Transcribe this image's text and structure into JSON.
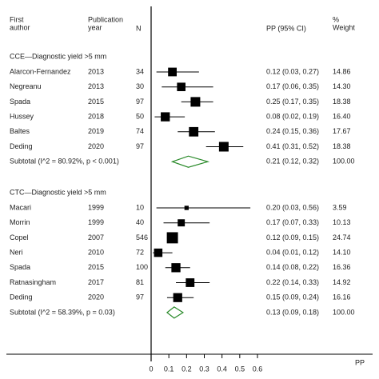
{
  "chart_data": {
    "type": "forest",
    "headers": {
      "author": [
        "First",
        "author"
      ],
      "year": [
        "Publication",
        "year"
      ],
      "n": "N",
      "ci": "PP (95% CI)",
      "weight": [
        "%",
        "Weight"
      ]
    },
    "x_label": "PP",
    "xlim": [
      0,
      0.6
    ],
    "xticks": [
      0,
      0.1,
      0.2,
      0.3,
      0.4,
      0.5,
      0.6
    ],
    "box_color": "#000000",
    "diamond_color": "#2a8a2a",
    "groups": [
      {
        "name": "CCE—Diagnostic yield >5 mm",
        "authors": [
          "Alarcon-Fernandez",
          "Negreanu",
          "Spada",
          "Hussey",
          "Baltes",
          "Deding"
        ],
        "years": [
          2013,
          2013,
          2015,
          2018,
          2019,
          2020
        ],
        "n": [
          34,
          30,
          97,
          50,
          74,
          97
        ],
        "values": [
          0.12,
          0.17,
          0.25,
          0.08,
          0.24,
          0.41
        ],
        "lower": [
          0.03,
          0.06,
          0.17,
          0.02,
          0.15,
          0.31
        ],
        "upper": [
          0.27,
          0.35,
          0.35,
          0.19,
          0.36,
          0.52
        ],
        "value_labels": [
          "0.12 (0.03, 0.27)",
          "0.17 (0.06, 0.35)",
          "0.25 (0.17, 0.35)",
          "0.08 (0.02, 0.19)",
          "0.24 (0.15, 0.36)",
          "0.41 (0.31, 0.52)"
        ],
        "weights": [
          14.86,
          14.3,
          18.38,
          16.4,
          17.67,
          18.38
        ],
        "weight_labels": [
          "14.86",
          "14.30",
          "18.38",
          "16.40",
          "17.67",
          "18.38"
        ],
        "subtotal": {
          "label": "Subtotal (I^2 = 80.92%, p < 0.001)",
          "value": 0.21,
          "lower": 0.12,
          "upper": 0.32,
          "value_label": "0.21 (0.12, 0.32)",
          "weight": 100,
          "weight_label": "100.00"
        }
      },
      {
        "name": "CTC—Diagnostic yield >5 mm",
        "authors": [
          "Macari",
          "Morrin",
          "Copel",
          "Neri",
          "Spada",
          "Ratnasingham",
          "Deding"
        ],
        "years": [
          1999,
          1999,
          2007,
          2010,
          2015,
          2017,
          2020
        ],
        "n": [
          10,
          40,
          546,
          72,
          100,
          81,
          97
        ],
        "values": [
          0.2,
          0.17,
          0.12,
          0.04,
          0.14,
          0.22,
          0.15
        ],
        "lower": [
          0.03,
          0.07,
          0.09,
          0.01,
          0.08,
          0.14,
          0.09
        ],
        "upper": [
          0.56,
          0.33,
          0.15,
          0.12,
          0.22,
          0.33,
          0.24
        ],
        "value_labels": [
          "0.20 (0.03, 0.56)",
          "0.17 (0.07, 0.33)",
          "0.12 (0.09, 0.15)",
          "0.04 (0.01, 0.12)",
          "0.14 (0.08, 0.22)",
          "0.22 (0.14, 0.33)",
          "0.15 (0.09, 0.24)"
        ],
        "weights": [
          3.59,
          10.13,
          24.74,
          14.1,
          16.36,
          14.92,
          16.16
        ],
        "weight_labels": [
          "3.59",
          "10.13",
          "24.74",
          "14.10",
          "16.36",
          "14.92",
          "16.16"
        ],
        "subtotal": {
          "label": "Subtotal (I^2 = 58.39%, p = 0.03)",
          "value": 0.13,
          "lower": 0.09,
          "upper": 0.18,
          "value_label": "0.13 (0.09, 0.18)",
          "weight": 100,
          "weight_label": "100.00"
        }
      }
    ]
  }
}
